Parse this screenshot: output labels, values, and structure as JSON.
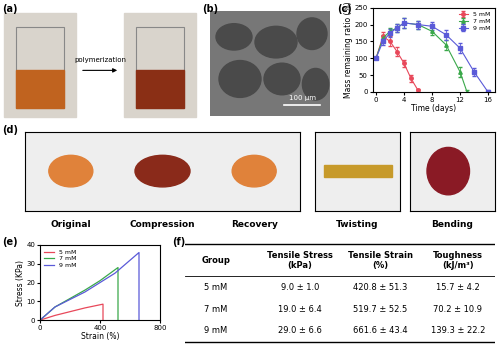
{
  "panels": {
    "a": {
      "label": "(a)",
      "annotation": "polymerization"
    },
    "b": {
      "label": "(b)",
      "scale_bar": "100 μm"
    },
    "c": {
      "label": "(c)"
    },
    "d": {
      "label": "(d)",
      "captions": [
        "Original",
        "Compression",
        "Recovery",
        "Twisting",
        "Bending"
      ]
    },
    "e": {
      "label": "(e)"
    },
    "f": {
      "label": "(f)"
    }
  },
  "chart_data": [
    {
      "type": "line",
      "xlabel": "Time (days)",
      "ylabel": "Mass remaining ratio (%)",
      "xlim": [
        -0.5,
        17
      ],
      "ylim": [
        0,
        250
      ],
      "xticks": [
        0,
        4,
        8,
        12,
        16
      ],
      "yticks": [
        0,
        50,
        100,
        150,
        200,
        250
      ],
      "legend": "upper right",
      "grid": false,
      "series": [
        {
          "name": "5 mM",
          "color": "#e8485a",
          "marker": "o",
          "x": [
            0,
            1,
            2,
            3,
            4,
            5,
            6
          ],
          "values": [
            100,
            165,
            150,
            120,
            85,
            40,
            5
          ],
          "errors": [
            0,
            12,
            15,
            12,
            10,
            10,
            5
          ]
        },
        {
          "name": "7 mM",
          "color": "#3aa84a",
          "marker": "^",
          "x": [
            0,
            1,
            2,
            3,
            4,
            6,
            8,
            10,
            12,
            13
          ],
          "values": [
            100,
            160,
            180,
            190,
            205,
            200,
            180,
            140,
            60,
            0
          ],
          "errors": [
            0,
            10,
            10,
            12,
            15,
            12,
            12,
            15,
            15,
            5
          ]
        },
        {
          "name": "9 mM",
          "color": "#5a5ad8",
          "marker": "s",
          "x": [
            0,
            1,
            2,
            3,
            4,
            6,
            8,
            10,
            12,
            14,
            16
          ],
          "values": [
            100,
            150,
            175,
            190,
            205,
            200,
            195,
            170,
            130,
            60,
            0
          ],
          "errors": [
            0,
            10,
            12,
            12,
            15,
            12,
            12,
            15,
            15,
            12,
            5
          ]
        }
      ]
    },
    {
      "type": "line",
      "xlabel": "Strain (%)",
      "ylabel": "Stress (KPa)",
      "xlim": [
        0,
        800
      ],
      "ylim": [
        0,
        40
      ],
      "xticks": [
        0,
        400,
        800
      ],
      "yticks": [
        0,
        10,
        20,
        30,
        40
      ],
      "legend": "upper left",
      "grid": false,
      "series": [
        {
          "name": "5 mM",
          "color": "#e8485a",
          "x": [
            0,
            100,
            200,
            300,
            420,
            420
          ],
          "values": [
            0,
            2.5,
            4.5,
            6.5,
            8.5,
            0
          ]
        },
        {
          "name": "7 mM",
          "color": "#3aa84a",
          "x": [
            0,
            100,
            200,
            300,
            400,
            520,
            520
          ],
          "values": [
            0,
            7,
            11.5,
            16,
            21,
            28,
            0
          ]
        },
        {
          "name": "9 mM",
          "color": "#5a5ad8",
          "x": [
            0,
            100,
            200,
            300,
            400,
            500,
            660,
            660
          ],
          "values": [
            0,
            7,
            11,
            15,
            20,
            25,
            36,
            0
          ]
        }
      ]
    }
  ],
  "table": {
    "columns": [
      "Group",
      "Tensile Stress\n(kPa)",
      "Tensile Strain\n(%)",
      "Toughness\n(kJ/m³)"
    ],
    "rows": [
      [
        "5 mM",
        "9.0 ± 1.0",
        "420.8 ± 51.3",
        "15.7 ± 4.2"
      ],
      [
        "7 mM",
        "19.0 ± 6.4",
        "519.7 ± 52.5",
        "70.2 ± 10.9"
      ],
      [
        "9 mM",
        "29.0 ± 6.6",
        "661.6 ± 43.4",
        "139.3 ± 22.2"
      ]
    ]
  }
}
